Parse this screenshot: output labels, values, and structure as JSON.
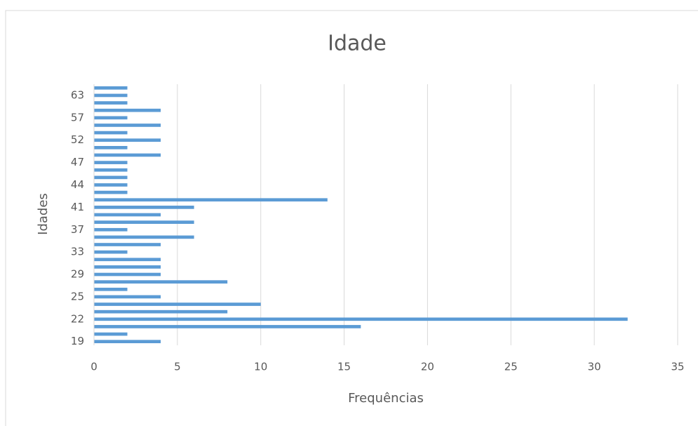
{
  "chart_data": {
    "type": "bar",
    "orientation": "horizontal",
    "title": "Idade",
    "x_label": "Frequências",
    "y_label": "Idades",
    "categories": [
      "19",
      null,
      null,
      "22",
      null,
      null,
      "25",
      null,
      null,
      "29",
      null,
      null,
      "33",
      null,
      null,
      "37",
      null,
      null,
      "41",
      null,
      null,
      "44",
      null,
      null,
      "47",
      null,
      null,
      "52",
      null,
      null,
      "57",
      null,
      null,
      "63",
      null
    ],
    "values": [
      4,
      2,
      16,
      32,
      8,
      10,
      4,
      2,
      8,
      4,
      4,
      4,
      2,
      4,
      6,
      2,
      6,
      4,
      6,
      14,
      2,
      2,
      2,
      2,
      2,
      4,
      2,
      4,
      2,
      4,
      2,
      4,
      2,
      2,
      2
    ],
    "color": "#5b9bd5",
    "xlim": [
      0,
      35
    ],
    "xticks": [
      0,
      5,
      10,
      15,
      20,
      25,
      30,
      35
    ],
    "grid": true
  }
}
